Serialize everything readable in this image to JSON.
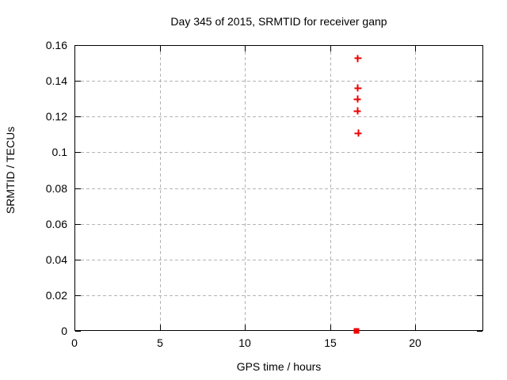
{
  "chart_data": {
    "type": "scatter",
    "title": "Day 345 of 2015, SRMTID for receiver ganp",
    "xlabel": "GPS time / hours",
    "ylabel": "SRMTID / TECUs",
    "xlim": [
      0,
      24
    ],
    "ylim": [
      0,
      0.16
    ],
    "xticks": [
      {
        "value": 0,
        "label": "0"
      },
      {
        "value": 5,
        "label": "5"
      },
      {
        "value": 10,
        "label": "10"
      },
      {
        "value": 15,
        "label": "15"
      },
      {
        "value": 20,
        "label": "20"
      }
    ],
    "yticks": [
      {
        "value": 0,
        "label": "0"
      },
      {
        "value": 0.02,
        "label": "0.02"
      },
      {
        "value": 0.04,
        "label": "0.04"
      },
      {
        "value": 0.06,
        "label": "0.06"
      },
      {
        "value": 0.08,
        "label": "0.08"
      },
      {
        "value": 0.1,
        "label": "0.1"
      },
      {
        "value": 0.12,
        "label": "0.12"
      },
      {
        "value": 0.14,
        "label": "0.14"
      },
      {
        "value": 0.16,
        "label": "0.16"
      }
    ],
    "grid": true,
    "legend": "none",
    "colors": {
      "marker": "#ee0000",
      "axis": "#000000",
      "grid": "#b4b4b4",
      "background": "#ffffff",
      "text": "#000000"
    },
    "series": [
      {
        "marker": "plus",
        "points": [
          {
            "x": 16.64,
            "y": 0.1525
          },
          {
            "x": 16.64,
            "y": 0.1359
          },
          {
            "x": 16.61,
            "y": 0.1297
          },
          {
            "x": 16.62,
            "y": 0.1232
          },
          {
            "x": 16.66,
            "y": 0.1108
          }
        ]
      },
      {
        "marker": "square",
        "points": [
          {
            "x": 16.56,
            "y": 0.0
          }
        ]
      }
    ]
  }
}
